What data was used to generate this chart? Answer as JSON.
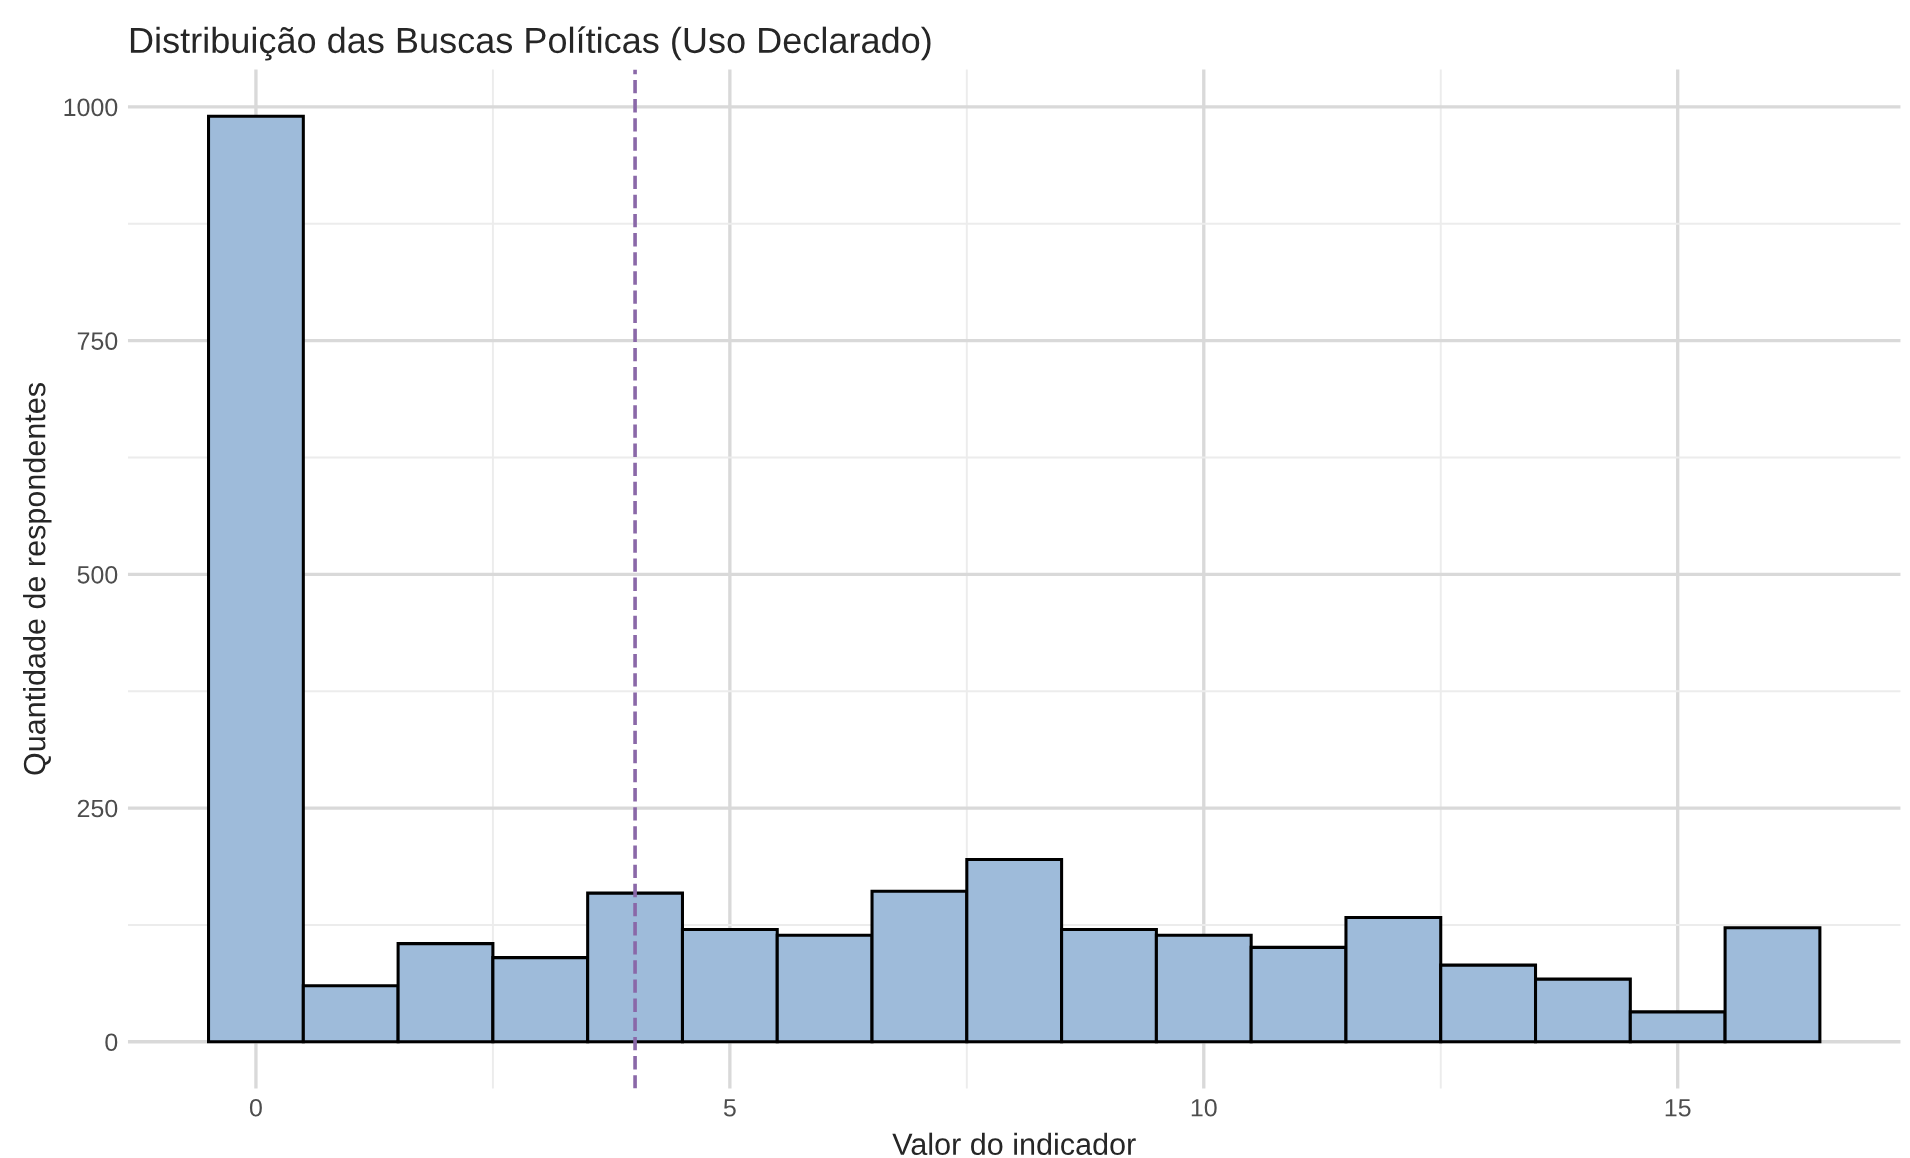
{
  "chart_data": {
    "type": "histogram",
    "title": "Distribuição das Buscas Políticas (Uso Declarado)",
    "xlabel": "Valor do indicador",
    "ylabel": "Quantidade de respondentes",
    "bins": [
      -0.5,
      0.5,
      1.5,
      2.5,
      3.5,
      4.5,
      5.5,
      6.5,
      7.5,
      8.5,
      9.5,
      10.5,
      11.5,
      12.5,
      13.5,
      14.5,
      15.5,
      16.5
    ],
    "values": [
      990,
      60,
      105,
      90,
      159,
      120,
      114,
      161,
      195,
      120,
      114,
      101,
      133,
      82,
      67,
      32,
      122
    ],
    "color": "#9ebbda",
    "xlim": [
      -1.35,
      17.35
    ],
    "ylim": [
      -50,
      1040
    ],
    "xticks": [
      0,
      5,
      10,
      15
    ],
    "yticks": [
      0,
      250,
      500,
      750,
      1000
    ],
    "ref_lines": [
      {
        "axis": "x",
        "value": 4,
        "color": "#8a68a8",
        "line_style": "dashed"
      }
    ],
    "grid": true
  }
}
